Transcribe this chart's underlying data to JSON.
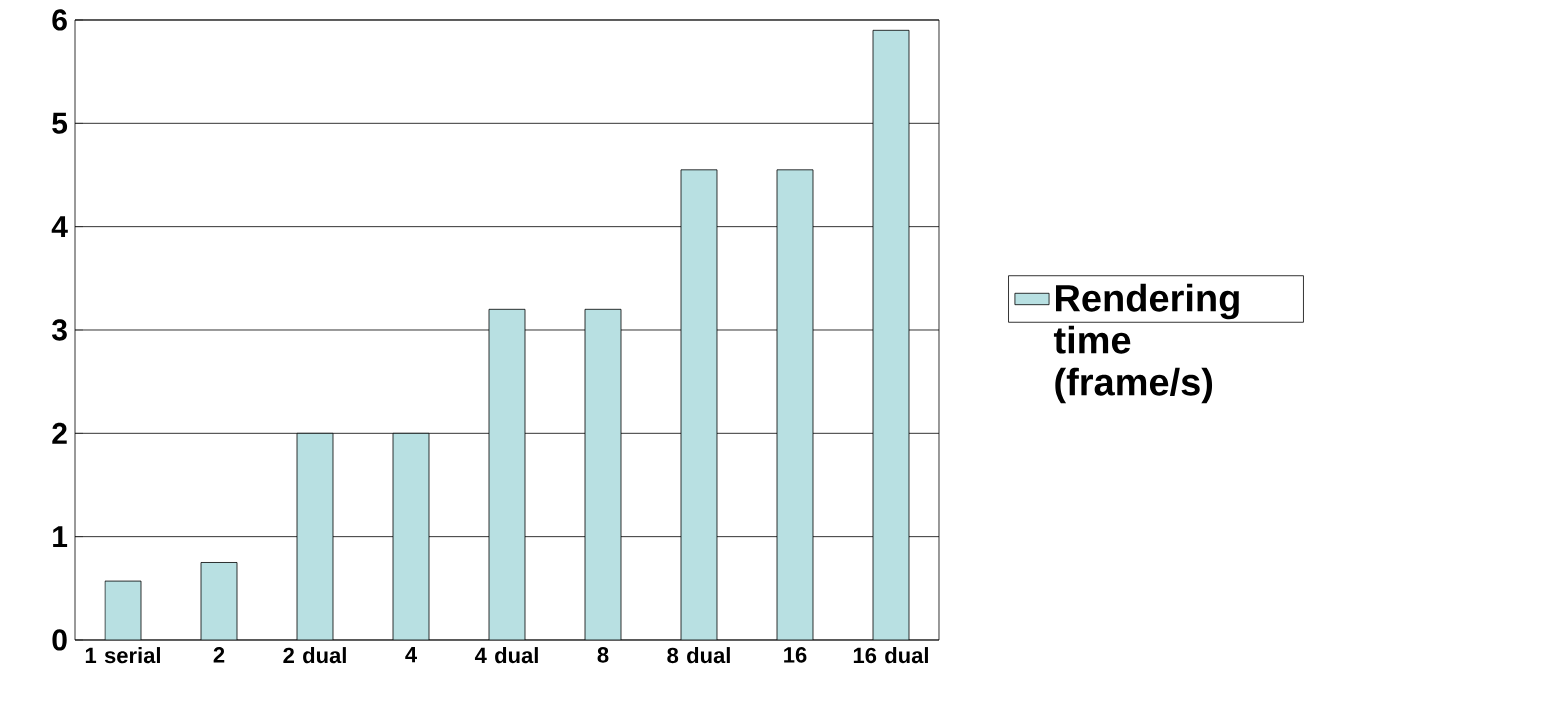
{
  "chart_data": {
    "type": "bar",
    "categories": [
      "1 serial",
      "2",
      "2 dual",
      "4",
      "4 dual",
      "8",
      "8 dual",
      "16",
      "16 dual"
    ],
    "series": [
      {
        "name": "Rendering time (frame/s)",
        "color": "#b8e0e2",
        "values": [
          0.57,
          0.75,
          2,
          2,
          3.2,
          3.2,
          4.55,
          4.55,
          5.9
        ]
      }
    ],
    "ylim": [
      0,
      6
    ],
    "yticks": [
      0,
      1,
      2,
      3,
      4,
      5,
      6
    ],
    "grid": "y",
    "legend": "right"
  }
}
